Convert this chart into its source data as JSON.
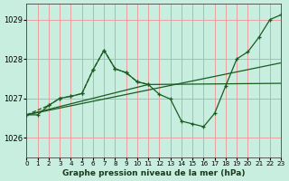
{
  "xlabel": "Graphe pression niveau de la mer (hPa)",
  "bg_color": "#c8eee0",
  "grid_color": "#e8a0a0",
  "line_color": "#1a5c20",
  "xlim": [
    0,
    23
  ],
  "ylim": [
    1025.5,
    1029.4
  ],
  "yticks": [
    1026,
    1027,
    1028,
    1029
  ],
  "xticks": [
    0,
    1,
    2,
    3,
    4,
    5,
    6,
    7,
    8,
    9,
    10,
    11,
    12,
    13,
    14,
    15,
    16,
    17,
    18,
    19,
    20,
    21,
    22,
    23
  ],
  "series1_x": [
    0,
    1,
    2,
    3,
    4,
    5,
    6,
    7,
    8,
    9,
    10,
    11,
    12,
    13,
    14,
    15,
    16,
    17,
    18,
    19,
    20,
    21,
    22,
    23
  ],
  "series1_y": [
    1026.58,
    1026.58,
    1026.82,
    1027.0,
    1027.05,
    1027.12,
    1027.72,
    1028.22,
    1027.75,
    1027.65,
    1027.42,
    1027.35,
    1027.1,
    1026.98,
    1026.42,
    1026.35,
    1026.28,
    1026.62,
    1027.32,
    1028.0,
    1028.18,
    1028.55,
    1029.0,
    1029.12
  ],
  "series2_x": [
    0,
    2,
    3,
    4,
    5,
    6,
    7,
    8,
    9,
    10,
    11
  ],
  "series2_y": [
    1026.58,
    1026.82,
    1027.0,
    1027.05,
    1027.12,
    1027.72,
    1028.22,
    1027.75,
    1027.65,
    1027.42,
    1027.35
  ],
  "series3_x": [
    0,
    23
  ],
  "series3_y": [
    1026.58,
    1027.9
  ],
  "series4_x": [
    0,
    11,
    23
  ],
  "series4_y": [
    1026.58,
    1027.35,
    1027.38
  ]
}
